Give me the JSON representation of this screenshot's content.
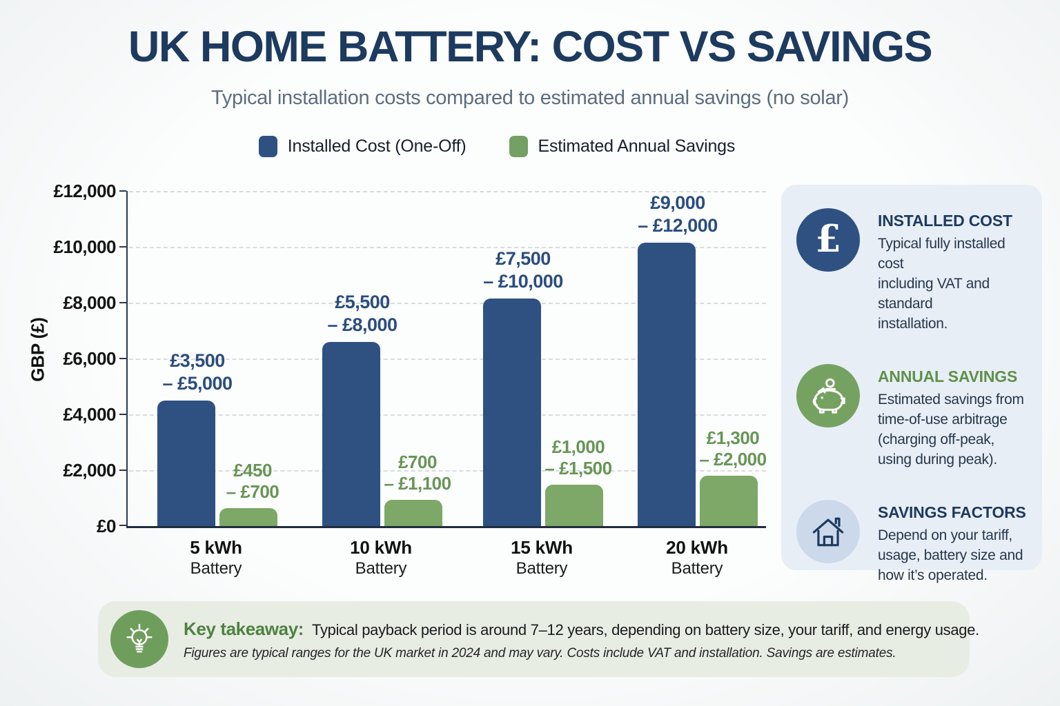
{
  "title": "UK HOME BATTERY: COST VS SAVINGS",
  "subtitle": "Typical installation costs compared to estimated annual savings (no solar)",
  "colors": {
    "title_navy": "#1d3a5f",
    "cost_bar": "#2e5181",
    "savings_bar": "#7da868",
    "cost_label_text": "#2b4d7e",
    "savings_label_text": "#679556",
    "sidebar_bg": "#e8eef6",
    "footer_bg": "#e8ede4",
    "savings_heading_green": "#5f9149",
    "takeaway_green": "#4e8140"
  },
  "chart_data": {
    "type": "bar",
    "title": "UK HOME BATTERY: COST VS SAVINGS",
    "subtitle": "Typical installation costs compared to estimated annual savings (no solar)",
    "xlabel": "",
    "ylabel": "GBP (£)",
    "ylim": [
      0,
      12000
    ],
    "ytick_values": [
      12000,
      10000,
      8000,
      6000,
      4000,
      2000,
      0
    ],
    "yticks": [
      "£12,000",
      "£10,000",
      "£8,000",
      "£6,000",
      "£4,000",
      "£2,000",
      "£0"
    ],
    "grid": "horizontal dashed",
    "legend_position": "top",
    "categories": [
      {
        "label": "5 kWh",
        "sub": "Battery"
      },
      {
        "label": "10 kWh",
        "sub": "Battery"
      },
      {
        "label": "15 kWh",
        "sub": "Battery"
      },
      {
        "label": "20 kWh",
        "sub": "Battery"
      }
    ],
    "series": [
      {
        "name": "Installed Cost (One-Off)",
        "color": "#2e5181",
        "values": [
          4500,
          6600,
          8150,
          10150
        ],
        "ranges": [
          "£3,500 – £5,000",
          "£5,500 – £8,000",
          "£7,500 – £10,000",
          "£9,000 – £12,000"
        ],
        "label_lines": [
          [
            "£3,500",
            "– £5,000"
          ],
          [
            "£5,500",
            "– £8,000"
          ],
          [
            "£7,500",
            "– £10,000"
          ],
          [
            "£9,000",
            "– £12,000"
          ]
        ]
      },
      {
        "name": "Estimated Annual Savings",
        "color": "#7da868",
        "values": [
          650,
          950,
          1475,
          1800
        ],
        "ranges": [
          "£450 – £700",
          "£700 – £1,100",
          "£1,000 – £1,500",
          "£1,300 – £2,000"
        ],
        "label_lines": [
          [
            "£450",
            "– £700"
          ],
          [
            "£700",
            "– £1,100"
          ],
          [
            "£1,000",
            "– £1,500"
          ],
          [
            "£1,300",
            "– £2,000"
          ]
        ]
      }
    ]
  },
  "sidebar": {
    "cards": [
      {
        "icon": "pound-icon",
        "title": "INSTALLED COST",
        "body": "Typical fully installed cost\nincluding VAT and standard\ninstallation."
      },
      {
        "icon": "piggy-bank-icon",
        "title": "ANNUAL SAVINGS",
        "body": "Estimated savings from\ntime-of-use arbitrage\n(charging off-peak,\nusing during peak)."
      },
      {
        "icon": "house-icon",
        "title": "SAVINGS FACTORS",
        "body": "Depend on your tariff,\nusage, battery size and\nhow it’s operated."
      }
    ]
  },
  "footer": {
    "icon": "lightbulb-icon",
    "takeaway_label": "Key takeaway:",
    "takeaway_text": "Typical payback period is around 7–12 years, depending on battery size, your tariff, and energy usage.",
    "note": "Figures are typical ranges for the UK market in 2024 and may vary. Costs include VAT and installation. Savings are estimates."
  },
  "icons": {
    "pound": "£",
    "sidebar": [
      "pound-icon",
      "piggy-bank-icon",
      "house-icon"
    ],
    "footer": "lightbulb-icon"
  }
}
